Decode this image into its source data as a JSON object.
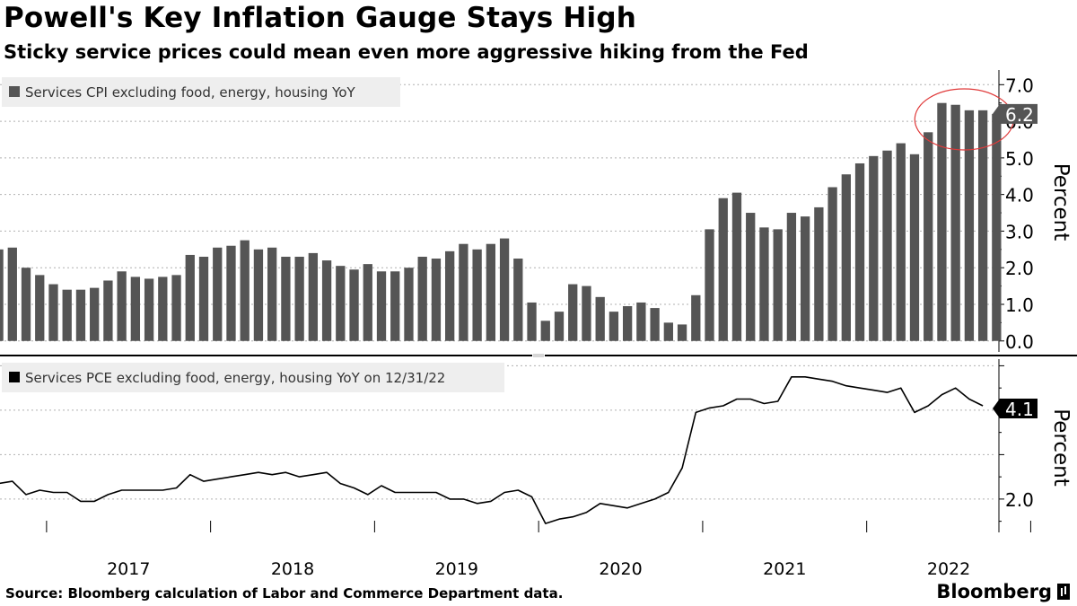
{
  "header": {
    "title": "Powell's Key Inflation Gauge Stays High",
    "subtitle": "Sticky service prices could mean even more aggressive hiking from the Fed"
  },
  "footer": {
    "source": "Source: Bloomberg calculation of Labor and Commerce Department data.",
    "brand": "Bloomberg"
  },
  "colors": {
    "bar": "#555555",
    "line": "#000000",
    "highlight_circle": "#e03a3a",
    "legend_bg": "#eeeeee"
  },
  "chart_data": [
    {
      "type": "bar",
      "legend": "Services CPI excluding food, energy, housing YoY",
      "ylabel": "Percent",
      "ylim": [
        -0.3,
        7.4
      ],
      "yticks": [
        "0.0",
        "1.0",
        "2.0",
        "3.0",
        "4.0",
        "5.0",
        "6.0",
        "7.0"
      ],
      "last_value_label": "6.2",
      "x_start": "2016-09",
      "values": [
        2.5,
        2.55,
        2.0,
        1.8,
        1.55,
        1.4,
        1.4,
        1.45,
        1.65,
        1.9,
        1.75,
        1.7,
        1.75,
        1.8,
        2.35,
        2.3,
        2.55,
        2.6,
        2.75,
        2.5,
        2.55,
        2.3,
        2.3,
        2.4,
        2.2,
        2.05,
        1.95,
        2.1,
        1.9,
        1.9,
        2.0,
        2.3,
        2.25,
        2.45,
        2.65,
        2.5,
        2.65,
        2.8,
        2.25,
        1.05,
        0.55,
        0.8,
        1.55,
        1.5,
        1.2,
        0.8,
        0.95,
        1.05,
        0.9,
        0.5,
        0.45,
        1.25,
        3.05,
        3.9,
        4.05,
        3.5,
        3.1,
        3.05,
        3.5,
        3.4,
        3.65,
        4.2,
        4.55,
        4.85,
        5.05,
        5.2,
        5.4,
        5.1,
        5.7,
        6.5,
        6.45,
        6.3,
        6.3,
        6.2
      ],
      "annotation": "highlight-circle"
    },
    {
      "type": "line",
      "legend": "Services PCE excluding food, energy, housing YoY on 12/31/22",
      "ylabel": "Percent",
      "ylim": [
        1.25,
        5.15
      ],
      "yticks": [
        "2.0"
      ],
      "last_value_label": "4.1",
      "x_start": "2016-09",
      "values": [
        2.35,
        2.4,
        2.1,
        2.2,
        2.15,
        2.15,
        1.95,
        1.95,
        2.1,
        2.2,
        2.2,
        2.2,
        2.2,
        2.25,
        2.55,
        2.4,
        2.45,
        2.5,
        2.55,
        2.6,
        2.55,
        2.6,
        2.5,
        2.55,
        2.6,
        2.35,
        2.25,
        2.1,
        2.3,
        2.15,
        2.15,
        2.15,
        2.15,
        2.0,
        2.0,
        1.9,
        1.95,
        2.15,
        2.2,
        2.05,
        1.45,
        1.55,
        1.6,
        1.7,
        1.9,
        1.85,
        1.8,
        1.9,
        2.0,
        2.15,
        2.7,
        3.95,
        4.05,
        4.1,
        4.25,
        4.25,
        4.15,
        4.2,
        4.75,
        4.75,
        4.7,
        4.65,
        4.55,
        4.5,
        4.45,
        4.4,
        4.5,
        3.95,
        4.1,
        4.35,
        4.5,
        4.25,
        4.1
      ]
    }
  ],
  "x_axis": {
    "labels": [
      "2017",
      "2018",
      "2019",
      "2020",
      "2021",
      "2022"
    ]
  }
}
